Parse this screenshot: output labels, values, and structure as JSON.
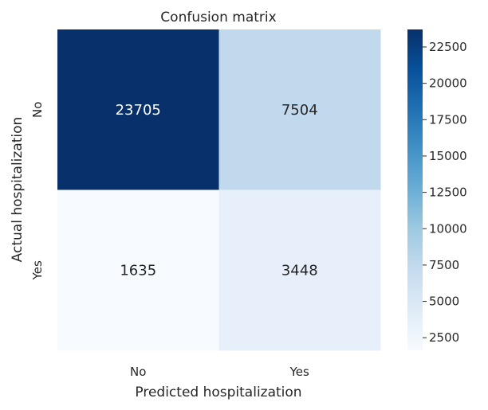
{
  "chart_data": {
    "type": "heatmap",
    "title": "Confusion matrix",
    "xlabel": "Predicted hospitalization",
    "ylabel": "Actual hospitalization",
    "x_categories": [
      "No",
      "Yes"
    ],
    "y_categories": [
      "No",
      "Yes"
    ],
    "values": [
      [
        23705,
        7504
      ],
      [
        1635,
        3448
      ]
    ],
    "colormap": "Blues",
    "colorbar": {
      "range": [
        1635,
        23705
      ],
      "ticks": [
        2500,
        5000,
        7500,
        10000,
        12500,
        15000,
        17500,
        20000,
        22500
      ]
    },
    "grid": false,
    "annotations": true
  }
}
